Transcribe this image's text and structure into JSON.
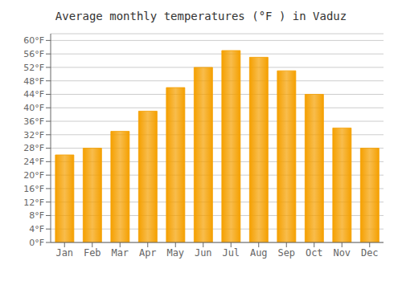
{
  "chart_data": {
    "type": "bar",
    "title": "Average monthly temperatures (°F ) in Vaduz",
    "categories": [
      "Jan",
      "Feb",
      "Mar",
      "Apr",
      "May",
      "Jun",
      "Jul",
      "Aug",
      "Sep",
      "Oct",
      "Nov",
      "Dec"
    ],
    "values": [
      26.0,
      28.0,
      33.0,
      39.0,
      46.0,
      52.0,
      57.0,
      55.0,
      51.0,
      44.0,
      34.0,
      28.0
    ],
    "color": "#F5A000",
    "ylim": [
      0,
      62
    ],
    "yticks": [
      {
        "value": 0,
        "label": "0°F"
      },
      {
        "value": 4,
        "label": "4°F"
      },
      {
        "value": 8,
        "label": "8°F"
      },
      {
        "value": 12,
        "label": "12°F"
      },
      {
        "value": 16,
        "label": "16°F"
      },
      {
        "value": 20,
        "label": "20°F"
      },
      {
        "value": 24,
        "label": "24°F"
      },
      {
        "value": 28,
        "label": "28°F"
      },
      {
        "value": 32,
        "label": "32°F"
      },
      {
        "value": 36,
        "label": "36°F"
      },
      {
        "value": 40,
        "label": "40°F"
      },
      {
        "value": 44,
        "label": "44°F"
      },
      {
        "value": 48,
        "label": "48°F"
      },
      {
        "value": 52,
        "label": "52°F"
      },
      {
        "value": 56,
        "label": "56°F"
      },
      {
        "value": 60,
        "label": "60°F"
      }
    ],
    "grid": true
  }
}
